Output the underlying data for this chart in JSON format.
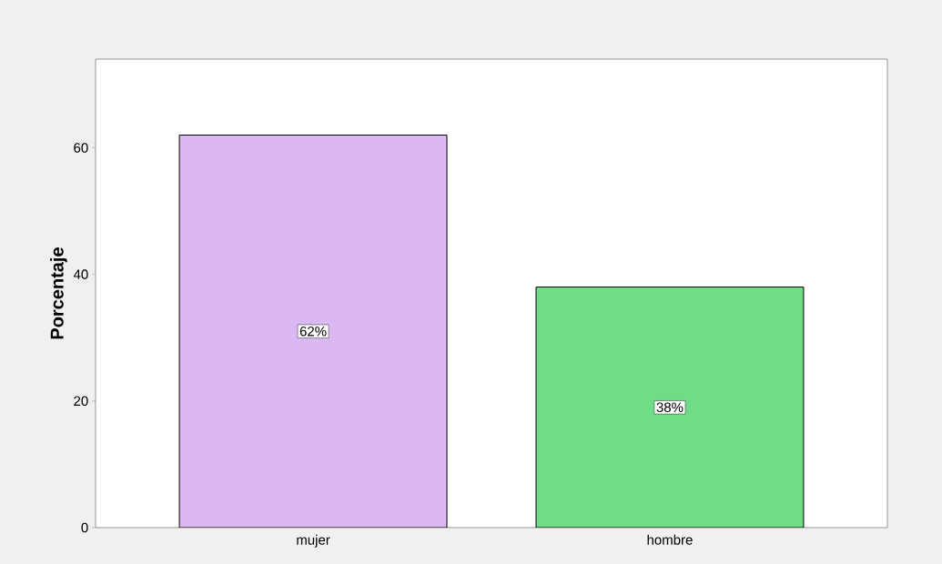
{
  "chart_data": {
    "type": "bar",
    "ylabel": "Porcentaje",
    "categories": [
      "mujer",
      "hombre"
    ],
    "values": [
      62,
      38
    ],
    "colors": [
      "#dcb8f2",
      "#70dc88"
    ],
    "value_labels": [
      "62%",
      "38%"
    ],
    "ylim": [
      0,
      74
    ],
    "yticks": [
      0,
      20,
      40,
      60
    ]
  }
}
